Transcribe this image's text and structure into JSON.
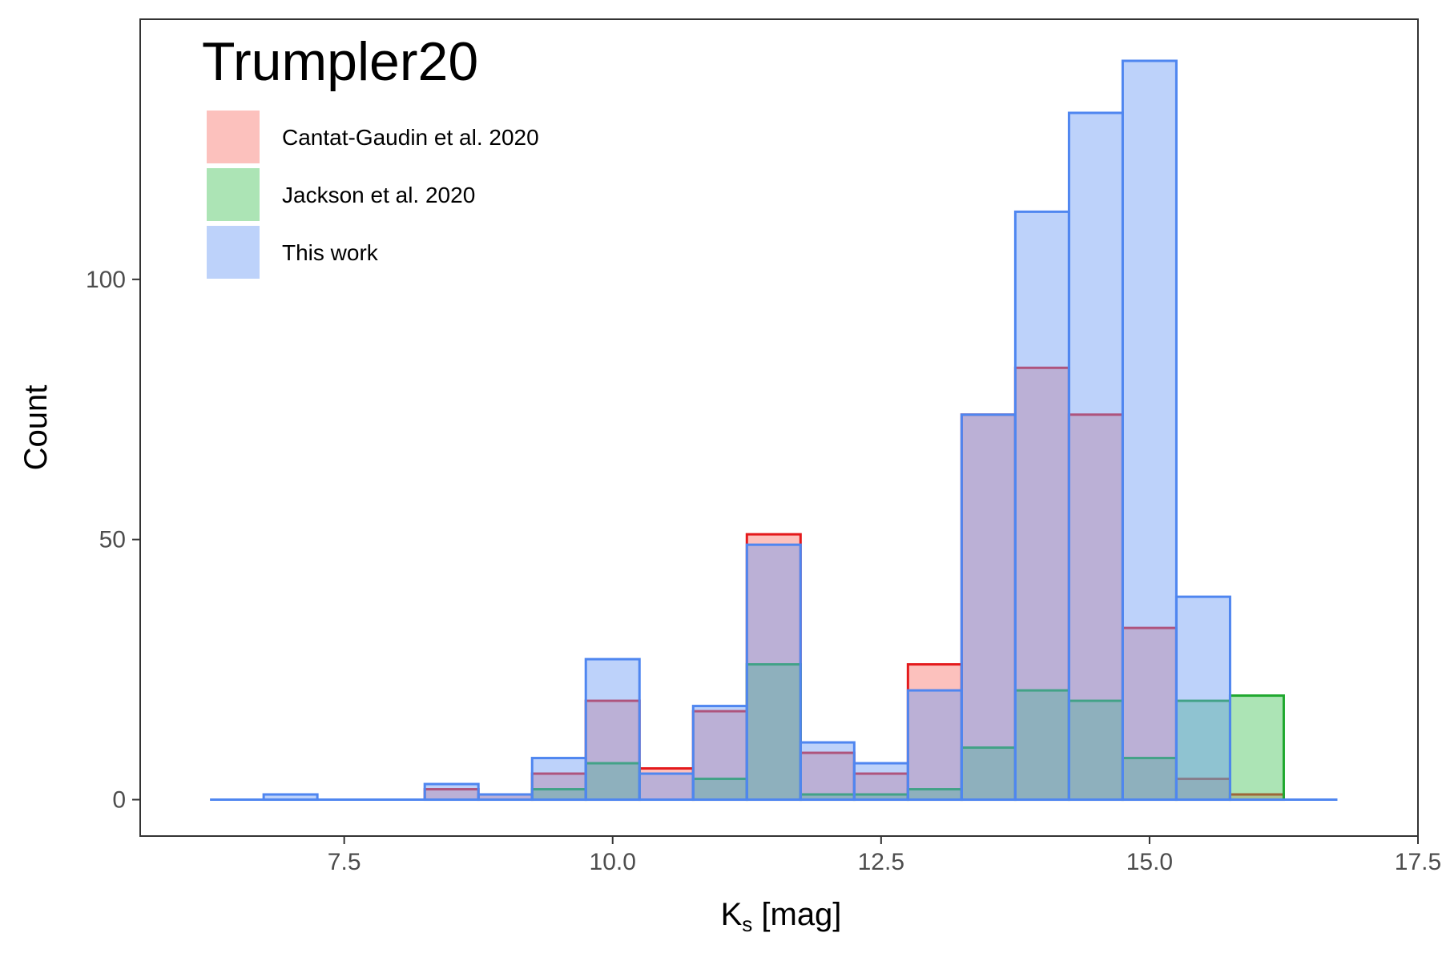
{
  "chart_data": {
    "type": "bar",
    "title": "Trumpler20",
    "xlabel": "K",
    "xlabel_subscript": "s",
    "xlabel_suffix": " [mag]",
    "ylabel": "Count",
    "xlim": [
      5.6,
      17.5
    ],
    "ylim": [
      -7,
      150
    ],
    "x_ticks": [
      7.5,
      10.0,
      12.5,
      15.0,
      17.5
    ],
    "x_tick_labels": [
      "7.5",
      "10.0",
      "12.5",
      "15.0",
      "17.5"
    ],
    "y_ticks": [
      0,
      50,
      100
    ],
    "y_tick_labels": [
      "0",
      "50",
      "100"
    ],
    "bin_width": 0.5,
    "grid": false,
    "legend_position": "top-left",
    "bin_centers": [
      6.5,
      7.0,
      7.5,
      8.0,
      8.5,
      9.0,
      9.5,
      10.0,
      10.5,
      11.0,
      11.5,
      12.0,
      12.5,
      13.0,
      13.5,
      14.0,
      14.5,
      15.0,
      15.5,
      16.0,
      16.5
    ],
    "series": [
      {
        "name": "Cantat-Gaudin et al. 2020",
        "fill": "#F8766D",
        "stroke": "#E41A1C",
        "values": [
          0,
          0,
          0,
          0,
          2,
          1,
          5,
          19,
          6,
          17,
          51,
          9,
          5,
          26,
          74,
          83,
          74,
          33,
          4,
          1,
          0
        ]
      },
      {
        "name": "Jackson et al. 2020",
        "fill": "#46C35A",
        "stroke": "#1FA82E",
        "values": [
          0,
          0,
          0,
          0,
          0,
          0,
          2,
          7,
          0,
          4,
          26,
          1,
          1,
          2,
          10,
          21,
          19,
          8,
          19,
          20,
          0
        ]
      },
      {
        "name": "This work",
        "fill": "#6C9BF5",
        "stroke": "#4F86F0",
        "values": [
          0,
          1,
          0,
          0,
          3,
          1,
          8,
          27,
          5,
          18,
          49,
          11,
          7,
          21,
          74,
          113,
          132,
          142,
          39,
          0,
          0
        ]
      }
    ]
  }
}
